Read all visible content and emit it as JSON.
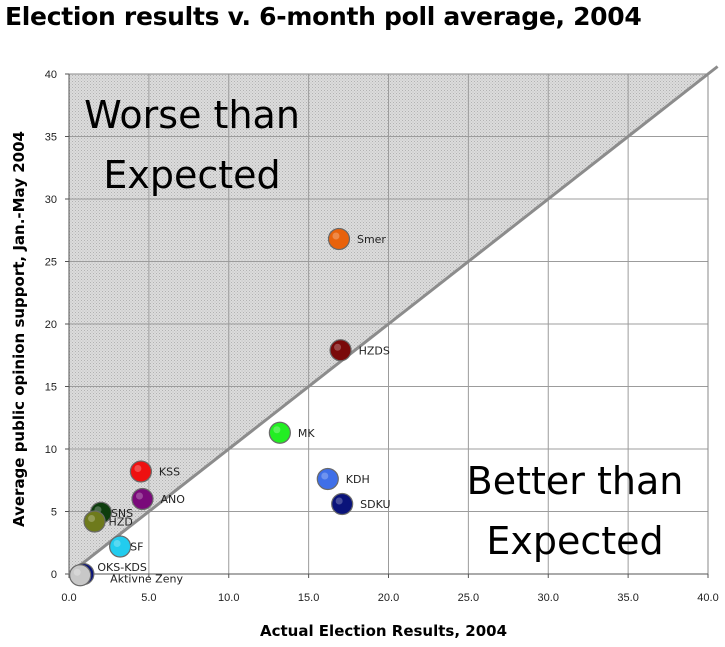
{
  "chart_data": {
    "type": "scatter",
    "title": "Election results v. 6-month poll average, 2004",
    "xlabel": "Actual Election Results, 2004",
    "ylabel": "Average public opinion support, Jan.-May 2004",
    "xlim": [
      0,
      40
    ],
    "ylim": [
      0,
      40
    ],
    "x_ticks": [
      "0.0",
      "5.0",
      "10.0",
      "15.0",
      "20.0",
      "25.0",
      "30.0",
      "35.0",
      "40.0"
    ],
    "y_ticks": [
      "0",
      "5",
      "10",
      "15",
      "20",
      "25",
      "30",
      "35",
      "40"
    ],
    "grid": true,
    "reference_line": "y = x",
    "regions": [
      {
        "lines": [
          "Worse than",
          "Expected"
        ],
        "shaded": true,
        "shade_color": "#d4d4d4"
      },
      {
        "lines": [
          "Better than",
          "Expected"
        ],
        "shaded": false
      }
    ],
    "points": [
      {
        "label": "Smer",
        "x": 16.9,
        "y": 26.8,
        "color": "#e8620c"
      },
      {
        "label": "HZDS",
        "x": 17.0,
        "y": 17.9,
        "color": "#7a0a0a"
      },
      {
        "label": "MK",
        "x": 13.2,
        "y": 11.3,
        "color": "#22ee22"
      },
      {
        "label": "KDH",
        "x": 16.2,
        "y": 7.6,
        "color": "#3f6fe8"
      },
      {
        "label": "SDKU",
        "x": 17.1,
        "y": 5.6,
        "color": "#0a137a"
      },
      {
        "label": "KSS",
        "x": 4.5,
        "y": 8.2,
        "color": "#ee1111"
      },
      {
        "label": "ANO",
        "x": 4.6,
        "y": 6.0,
        "color": "#7a0a7a"
      },
      {
        "label": "SNS",
        "x": 2.0,
        "y": 4.9,
        "color": "#0d3d0d"
      },
      {
        "label": "HZD",
        "x": 1.6,
        "y": 4.2,
        "color": "#6e7a1c"
      },
      {
        "label": "SF",
        "x": 3.2,
        "y": 2.2,
        "color": "#22ccee"
      },
      {
        "label": "OKS-KDS",
        "x": 0.9,
        "y": 0.0,
        "color": "#0a137a"
      },
      {
        "label": "Aktivne Zeny",
        "x": 0.7,
        "y": -0.1,
        "color": "#c8c8c8"
      }
    ]
  }
}
